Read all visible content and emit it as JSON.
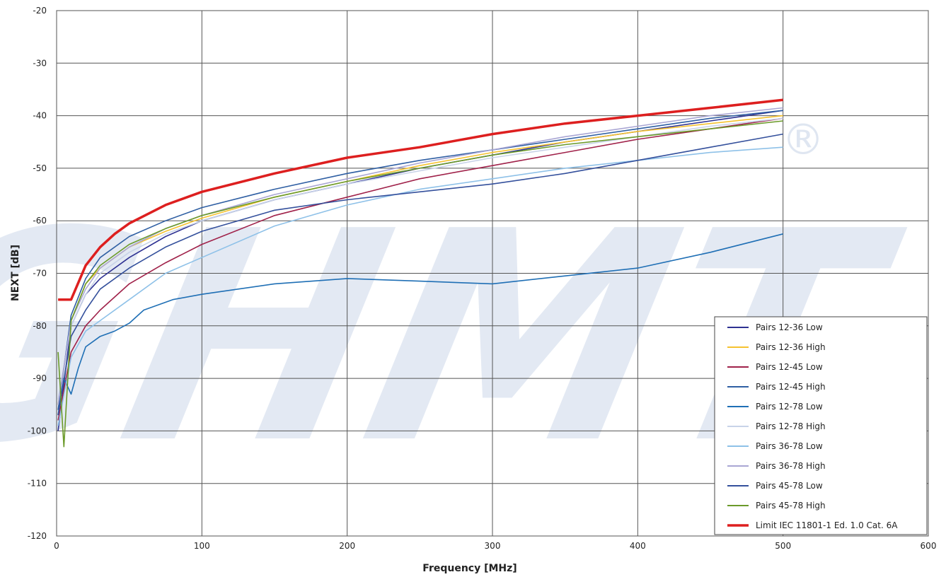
{
  "watermark": {
    "text": "GHMT",
    "mark": "®",
    "color": "#dfe6f1"
  },
  "chart_data": {
    "type": "line",
    "title": "",
    "xlabel": "Frequency [MHz]",
    "ylabel": "NEXT [dB]",
    "xlim": [
      0,
      600
    ],
    "ylim": [
      -120,
      -20
    ],
    "xticks": [
      "0",
      "100",
      "200",
      "300",
      "400",
      "500",
      "600"
    ],
    "yticks": [
      "-20",
      "-30",
      "-40",
      "-50",
      "-60",
      "-70",
      "-80",
      "-90",
      "-100",
      "-110",
      "-120"
    ],
    "grid": true,
    "legend_position": "bottom-right",
    "series": [
      {
        "name": "Pairs 12-36 Low",
        "color": "#2e3192",
        "x": [
          1,
          10,
          20,
          30,
          50,
          75,
          100,
          150,
          200,
          250,
          300,
          350,
          400,
          450,
          500
        ],
        "y": [
          -100,
          -80,
          -74,
          -71,
          -67,
          -63,
          -60,
          -56,
          -53,
          -50,
          -47.5,
          -45,
          -43,
          -41,
          -39
        ]
      },
      {
        "name": "Pairs 12-36 High",
        "color": "#f5c230",
        "x": [
          1,
          10,
          20,
          30,
          50,
          75,
          100,
          150,
          200,
          250,
          300,
          350,
          400,
          450,
          500
        ],
        "y": [
          -95,
          -79,
          -72,
          -69,
          -65,
          -62,
          -59.5,
          -55.5,
          -52.5,
          -49.5,
          -47,
          -45,
          -43,
          -41.5,
          -40
        ]
      },
      {
        "name": "Pairs 12-45 Low",
        "color": "#a0224a",
        "x": [
          1,
          10,
          20,
          30,
          50,
          75,
          100,
          150,
          200,
          250,
          300,
          350,
          400,
          450,
          500
        ],
        "y": [
          -98,
          -85,
          -80,
          -77,
          -72,
          -68,
          -64.5,
          -59,
          -55.5,
          -52,
          -49.5,
          -47,
          -44.5,
          -42.5,
          -40.5
        ]
      },
      {
        "name": "Pairs 12-45 High",
        "color": "#2f5fa3",
        "x": [
          1,
          10,
          20,
          30,
          50,
          75,
          100,
          150,
          200,
          250,
          300,
          350,
          400,
          450,
          500
        ],
        "y": [
          -96,
          -78,
          -71,
          -67,
          -63,
          -60,
          -57.5,
          -54,
          -51,
          -48.5,
          -46.5,
          -44.5,
          -42.5,
          -40.5,
          -39
        ]
      },
      {
        "name": "Pairs 12-78 Low",
        "color": "#1f6fb5",
        "x": [
          1,
          5,
          10,
          15,
          20,
          30,
          40,
          50,
          60,
          80,
          100,
          150,
          200,
          250,
          300,
          350,
          400,
          450,
          500
        ],
        "y": [
          -97,
          -90,
          -93,
          -88,
          -84,
          -82,
          -81,
          -79.5,
          -77,
          -75,
          -74,
          -72,
          -71,
          -71.5,
          -72,
          -70.5,
          -69,
          -66,
          -62.5
        ]
      },
      {
        "name": "Pairs 12-78 High",
        "color": "#c8d3e8",
        "x": [
          1,
          10,
          20,
          30,
          50,
          75,
          100,
          150,
          200,
          250,
          300,
          350,
          400,
          450,
          500
        ],
        "y": [
          -94,
          -80,
          -74,
          -70,
          -66,
          -62.5,
          -60,
          -56,
          -53,
          -50.5,
          -48,
          -46,
          -44,
          -42,
          -40.5
        ]
      },
      {
        "name": "Pairs 36-78 Low",
        "color": "#8ec1e8",
        "x": [
          1,
          10,
          20,
          30,
          50,
          75,
          100,
          150,
          200,
          250,
          300,
          350,
          400,
          450,
          500
        ],
        "y": [
          -99,
          -86,
          -81,
          -79,
          -75,
          -70,
          -67,
          -61,
          -57,
          -54,
          -52,
          -50,
          -48.5,
          -47,
          -46
        ]
      },
      {
        "name": "Pairs 36-78 High",
        "color": "#a9a6d4",
        "x": [
          1,
          10,
          20,
          30,
          50,
          75,
          100,
          150,
          200,
          250,
          300,
          350,
          400,
          450,
          500
        ],
        "y": [
          -95,
          -79,
          -73,
          -69,
          -65,
          -61.5,
          -59,
          -55,
          -52,
          -49,
          -46.5,
          -44,
          -42,
          -40,
          -38.5
        ]
      },
      {
        "name": "Pairs 45-78 Low",
        "color": "#34509c",
        "x": [
          1,
          10,
          20,
          30,
          50,
          75,
          100,
          150,
          200,
          250,
          300,
          350,
          400,
          450,
          500
        ],
        "y": [
          -97,
          -82,
          -77,
          -73,
          -69,
          -65,
          -62,
          -58,
          -56,
          -54.5,
          -53,
          -51,
          -48.5,
          -46,
          -43.5
        ]
      },
      {
        "name": "Pairs 45-78 High",
        "color": "#6b9a2a",
        "x": [
          1,
          5,
          10,
          20,
          30,
          50,
          75,
          100,
          150,
          200,
          250,
          300,
          350,
          400,
          450,
          500
        ],
        "y": [
          -85,
          -103,
          -79,
          -72,
          -68.5,
          -64.5,
          -61.5,
          -59,
          -55.5,
          -52.5,
          -50,
          -47.5,
          -45.5,
          -44,
          -42.5,
          -41
        ]
      },
      {
        "name": "Limit IEC 11801-1 Ed. 1.0 Cat. 6A",
        "color": "#dd1f1f",
        "x": [
          1,
          10,
          20,
          30,
          40,
          50,
          75,
          100,
          150,
          200,
          250,
          300,
          350,
          400,
          450,
          500
        ],
        "y": [
          -75,
          -75,
          -68.5,
          -65,
          -62.5,
          -60.5,
          -57,
          -54.5,
          -51,
          -48,
          -46,
          -43.5,
          -41.5,
          -40,
          -38.5,
          -37
        ]
      }
    ]
  }
}
